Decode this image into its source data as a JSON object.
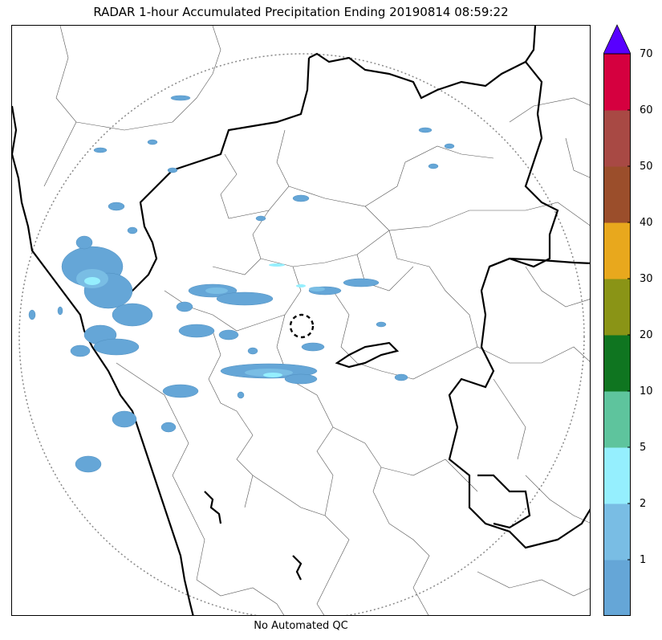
{
  "title": "RADAR 1-hour Accumulated Precipitation Ending 20190814 08:59:22",
  "footer": "No Automated QC",
  "legend": {
    "colors": [
      "#65a6d7",
      "#79bde4",
      "#95effe",
      "#5ec49d",
      "#0f7520",
      "#8a9416",
      "#e8a81d",
      "#9b4e2b",
      "#a84944",
      "#d5003f"
    ],
    "over_color": "#5800ff",
    "ticks": [
      "1",
      "2",
      "5",
      "10",
      "20",
      "30",
      "40",
      "50",
      "60",
      "70"
    ]
  },
  "map_colors": {
    "precip_light": "#65a6d7",
    "precip_mid": "#79bde4",
    "precip_heavy": "#95effe",
    "border": "#000000",
    "range_ring": "#888888"
  }
}
